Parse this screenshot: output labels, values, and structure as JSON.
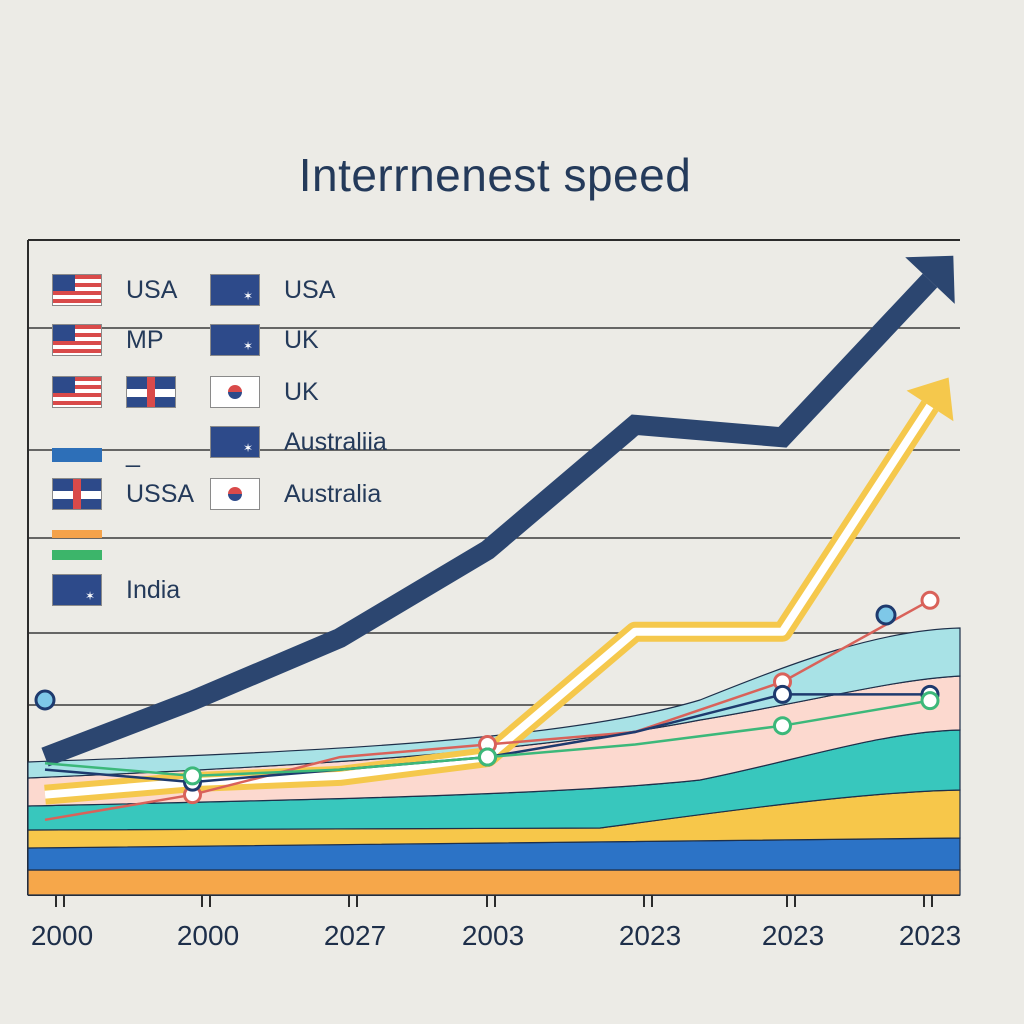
{
  "chart_data": {
    "type": "line",
    "title": "Interrnenest speed",
    "x_tick_labels": [
      "2000",
      "2000",
      "2027",
      "2003",
      "2023",
      "2023",
      "2023"
    ],
    "grid": true,
    "legend_placement": "top-left",
    "legend": [
      {
        "label": "USA",
        "flag": "us-flag-icon"
      },
      {
        "label": "MP",
        "flag": "us-flag-icon"
      },
      {
        "label": "",
        "flag": "us-flag-icon"
      },
      {
        "label": "",
        "flag": "plain-blue-swatch"
      },
      {
        "label": "USSA",
        "flag": "uk-flag-icon"
      },
      {
        "label": "",
        "flag": "india-swatch"
      },
      {
        "label": "India",
        "flag": "au-flag-icon"
      },
      {
        "label": "USA",
        "flag": "au-flag-icon"
      },
      {
        "label": "UK",
        "flag": "au-flag-icon"
      },
      {
        "label": "UK",
        "flag": "kr-flag-icon"
      },
      {
        "label": "Australiia",
        "flag": "au-flag-icon"
      },
      {
        "label": "Australia",
        "flag": "kr-flag-icon"
      },
      {
        "label": "",
        "flag": "uk-flag-icon"
      },
      {
        "label": "_",
        "flag": "dash"
      }
    ],
    "series": [
      {
        "color": "#2c4670",
        "style": "arrow",
        "y": [
          22,
          31,
          41,
          55,
          75,
          73,
          98
        ]
      },
      {
        "color": "#f5c84c",
        "style": "arrow",
        "y": [
          16,
          18,
          19,
          22,
          42,
          42,
          78
        ]
      },
      {
        "color": "#d9625a",
        "style": "markers",
        "y": [
          12,
          16,
          22,
          24,
          26,
          34,
          47
        ]
      },
      {
        "color": "#1e3a6e",
        "style": "markers",
        "y": [
          20,
          18,
          20,
          22,
          26,
          32,
          32
        ]
      },
      {
        "color": "#3cb87a",
        "style": "markers",
        "y": [
          21,
          19,
          20,
          22,
          24,
          27,
          31
        ]
      }
    ],
    "bands": [
      {
        "color": "#f6a74a"
      },
      {
        "color": "#2c73c6"
      },
      {
        "color": "#f7c74a"
      },
      {
        "color": "#38c7bd"
      },
      {
        "color": "#fcd9cf"
      },
      {
        "color": "#a8e2e6"
      }
    ]
  }
}
